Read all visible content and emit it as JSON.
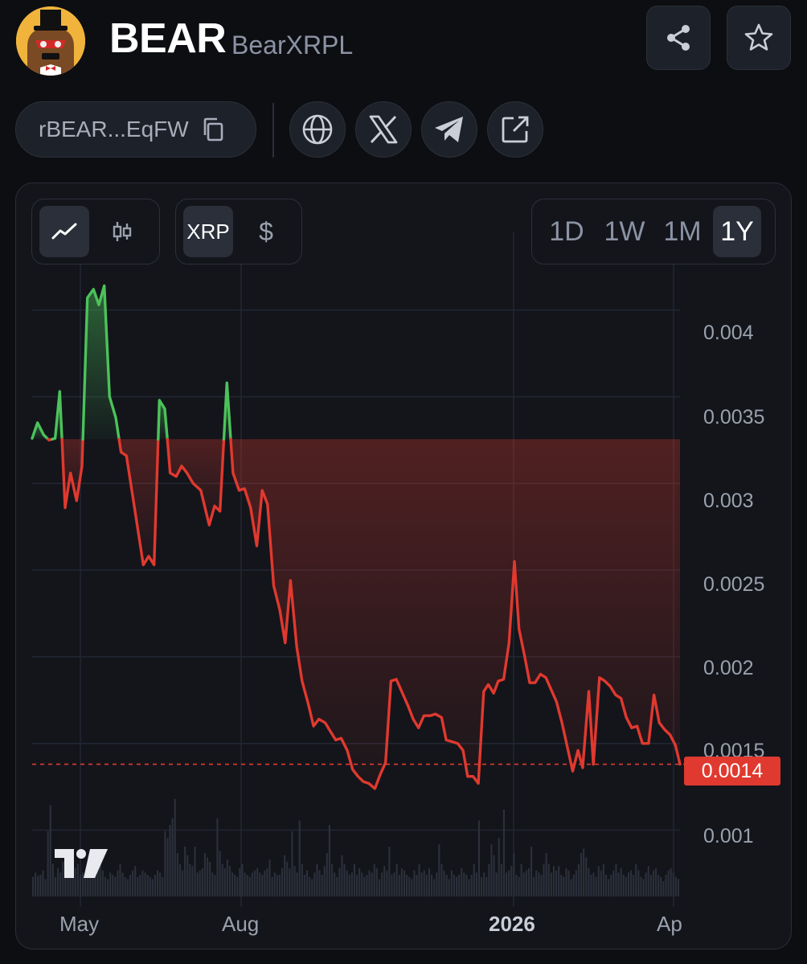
{
  "header": {
    "symbol": "BEAR",
    "name": "BearXRPL"
  },
  "address": {
    "short": "rBEAR...EqFW"
  },
  "icons": {
    "share": "share-icon",
    "favorite": "star-icon",
    "copy": "copy-icon",
    "website": "globe-icon",
    "x": "x-logo-icon",
    "telegram": "telegram-icon",
    "external": "external-link-icon"
  },
  "chart_controls": {
    "chart_types": [
      "line-chart-icon",
      "candlestick-icon"
    ],
    "active_chart_type": "line",
    "currencies": [
      "XRP",
      "$"
    ],
    "active_currency": "XRP",
    "ranges": [
      "1D",
      "1W",
      "1M",
      "1Y"
    ],
    "active_range": "1Y"
  },
  "colors": {
    "up": "#4cc25a",
    "down": "#e0392f",
    "background": "#0d0e12",
    "card": "#13151b"
  },
  "chart_data": {
    "type": "line",
    "y_ticks": [
      "0.004",
      "0.0035",
      "0.003",
      "0.0025",
      "0.002",
      "0.0015",
      "0.001"
    ],
    "x_ticks": [
      "May",
      "Aug",
      "2026",
      "Ap"
    ],
    "ylim": [
      0.00065,
      0.00436
    ],
    "last_price_label": "0.0014",
    "baseline": 0.003255,
    "last_price": 0.00138,
    "price": [
      [
        0.0,
        0.00326
      ],
      [
        0.7,
        0.00335
      ],
      [
        1.5,
        0.00328
      ],
      [
        2.2,
        0.00325
      ],
      [
        3.0,
        0.00326
      ],
      [
        3.6,
        0.00353
      ],
      [
        4.3,
        0.00286
      ],
      [
        5.0,
        0.00306
      ],
      [
        5.8,
        0.0029
      ],
      [
        6.5,
        0.0031
      ],
      [
        7.2,
        0.00407
      ],
      [
        8.0,
        0.00412
      ],
      [
        8.7,
        0.00403
      ],
      [
        9.4,
        0.00414
      ],
      [
        10.1,
        0.0035
      ],
      [
        10.9,
        0.00338
      ],
      [
        11.6,
        0.00318
      ],
      [
        12.3,
        0.00316
      ],
      [
        13.0,
        0.00296
      ],
      [
        14.5,
        0.00253
      ],
      [
        15.2,
        0.00258
      ],
      [
        15.9,
        0.00253
      ],
      [
        16.6,
        0.00348
      ],
      [
        17.3,
        0.00343
      ],
      [
        18.0,
        0.00306
      ],
      [
        18.8,
        0.00304
      ],
      [
        19.5,
        0.0031
      ],
      [
        20.2,
        0.00306
      ],
      [
        21.0,
        0.003
      ],
      [
        22.0,
        0.00296
      ],
      [
        23.1,
        0.00276
      ],
      [
        23.8,
        0.00287
      ],
      [
        24.5,
        0.00284
      ],
      [
        25.4,
        0.00358
      ],
      [
        26.2,
        0.00306
      ],
      [
        27.0,
        0.00296
      ],
      [
        27.7,
        0.00297
      ],
      [
        28.5,
        0.00286
      ],
      [
        29.3,
        0.00264
      ],
      [
        30.0,
        0.00296
      ],
      [
        30.7,
        0.00288
      ],
      [
        31.5,
        0.00241
      ],
      [
        32.3,
        0.00227
      ],
      [
        33.0,
        0.00208
      ],
      [
        33.7,
        0.00244
      ],
      [
        34.5,
        0.00206
      ],
      [
        35.2,
        0.00186
      ],
      [
        36.0,
        0.00173
      ],
      [
        36.7,
        0.0016
      ],
      [
        37.4,
        0.00164
      ],
      [
        38.2,
        0.00162
      ],
      [
        38.9,
        0.00157
      ],
      [
        39.6,
        0.00152
      ],
      [
        40.3,
        0.00153
      ],
      [
        41.1,
        0.00146
      ],
      [
        41.8,
        0.00135
      ],
      [
        42.5,
        0.00131
      ],
      [
        43.2,
        0.00128
      ],
      [
        43.9,
        0.00127
      ],
      [
        44.7,
        0.00124
      ],
      [
        45.4,
        0.00132
      ],
      [
        46.1,
        0.00139
      ],
      [
        46.8,
        0.00186
      ],
      [
        47.5,
        0.00187
      ],
      [
        48.3,
        0.00179
      ],
      [
        49.0,
        0.00172
      ],
      [
        49.7,
        0.00164
      ],
      [
        50.4,
        0.00159
      ],
      [
        51.1,
        0.00166
      ],
      [
        51.9,
        0.00166
      ],
      [
        52.6,
        0.00167
      ],
      [
        53.4,
        0.00165
      ],
      [
        54.0,
        0.00152
      ],
      [
        54.8,
        0.00151
      ],
      [
        55.5,
        0.0015
      ],
      [
        56.2,
        0.00146
      ],
      [
        56.8,
        0.00131
      ],
      [
        57.5,
        0.00131
      ],
      [
        58.2,
        0.00127
      ],
      [
        58.9,
        0.0018
      ],
      [
        59.5,
        0.00184
      ],
      [
        60.2,
        0.00179
      ],
      [
        60.8,
        0.00186
      ],
      [
        61.5,
        0.00187
      ],
      [
        62.2,
        0.00208
      ],
      [
        62.9,
        0.00255
      ],
      [
        63.5,
        0.00216
      ],
      [
        64.2,
        0.00201
      ],
      [
        64.9,
        0.00185
      ],
      [
        65.6,
        0.00185
      ],
      [
        66.3,
        0.0019
      ],
      [
        67.0,
        0.00188
      ],
      [
        67.7,
        0.00181
      ],
      [
        68.4,
        0.00174
      ],
      [
        69.1,
        0.00162
      ],
      [
        69.8,
        0.00148
      ],
      [
        70.5,
        0.00134
      ],
      [
        71.2,
        0.00146
      ],
      [
        71.8,
        0.00136
      ],
      [
        72.6,
        0.0018
      ],
      [
        73.2,
        0.00138
      ],
      [
        74.0,
        0.00188
      ],
      [
        74.7,
        0.00186
      ],
      [
        75.4,
        0.00183
      ],
      [
        76.1,
        0.00178
      ],
      [
        76.8,
        0.00176
      ],
      [
        77.5,
        0.00165
      ],
      [
        78.2,
        0.00159
      ],
      [
        78.9,
        0.0016
      ],
      [
        79.6,
        0.0015
      ],
      [
        80.4,
        0.0015
      ],
      [
        81.1,
        0.00178
      ],
      [
        81.8,
        0.00162
      ],
      [
        82.5,
        0.00158
      ],
      [
        83.2,
        0.00155
      ],
      [
        83.9,
        0.00149
      ],
      [
        84.5,
        0.00138
      ]
    ],
    "volume_note": "relative volume bars",
    "volume": [
      18,
      22,
      19,
      20,
      24,
      16,
      60,
      84,
      30,
      18,
      26,
      22,
      32,
      24,
      20,
      22,
      18,
      26,
      30,
      20,
      22,
      18,
      24,
      28,
      20,
      22,
      26,
      30,
      24,
      18,
      16,
      22,
      20,
      18,
      24,
      30,
      22,
      18,
      16,
      20,
      24,
      28,
      18,
      20,
      24,
      22,
      20,
      18,
      16,
      20,
      24,
      22,
      18,
      60,
      54,
      66,
      72,
      90,
      40,
      30,
      24,
      46,
      38,
      30,
      28,
      46,
      22,
      24,
      26,
      40,
      36,
      32,
      22,
      20,
      72,
      42,
      30,
      26,
      34,
      28,
      22,
      20,
      18,
      26,
      30,
      22,
      20,
      18,
      22,
      24,
      26,
      22,
      20,
      24,
      26,
      34,
      18,
      22,
      20,
      20,
      26,
      38,
      32,
      26,
      60,
      28,
      22,
      70,
      30,
      20,
      24,
      18,
      16,
      22,
      30,
      24,
      20,
      28,
      40,
      66,
      30,
      22,
      18,
      26,
      38,
      30,
      24,
      20,
      22,
      30,
      20,
      26,
      22,
      18,
      20,
      24,
      22,
      30,
      26,
      16,
      22,
      28,
      24,
      46,
      20,
      22,
      30,
      20,
      26,
      24,
      20,
      18,
      16,
      24,
      20,
      30,
      22,
      24,
      20,
      26,
      20,
      16,
      22,
      48,
      30,
      24,
      20,
      16,
      24,
      20,
      18,
      20,
      26,
      22,
      20,
      16,
      20,
      30,
      22,
      70,
      18,
      22,
      18,
      30,
      48,
      38,
      22,
      54,
      30,
      80,
      22,
      24,
      28,
      40,
      20,
      18,
      30,
      22,
      24,
      26,
      46,
      18,
      24,
      22,
      20,
      30,
      40,
      30,
      22,
      28,
      24,
      28,
      20,
      18,
      26,
      24,
      16,
      20,
      24,
      30,
      40,
      44,
      36,
      26,
      20,
      22,
      18,
      28,
      24,
      30,
      20,
      16,
      20,
      24,
      30,
      22,
      26,
      20,
      18,
      22,
      24,
      20,
      30,
      24,
      18,
      16,
      22,
      28,
      20,
      24,
      26,
      20,
      18,
      14,
      20,
      24,
      26,
      22,
      18,
      16
    ]
  }
}
